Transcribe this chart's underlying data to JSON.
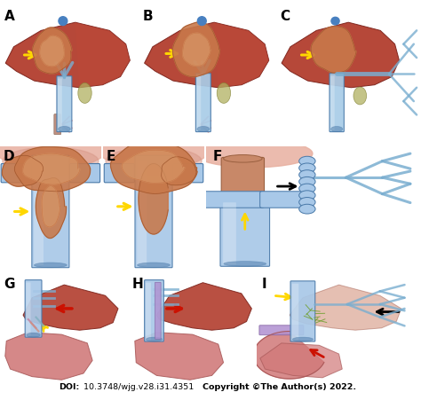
{
  "figsize": [
    4.74,
    4.51
  ],
  "dpi": 100,
  "background_color": "#ffffff",
  "panel_labels": [
    "A",
    "B",
    "C",
    "D",
    "E",
    "F",
    "G",
    "H",
    "I"
  ],
  "doi_bold": "DOI:",
  "doi_rest": " 10.3748/wjg.v28.i31.4351 ",
  "doi_copy": "Copyright ©The Author(s) 2022.",
  "doi_fontsize": 6.8,
  "yellow": "#FFD700",
  "red": "#CC1100",
  "black": "#000000",
  "liver_dark": "#9B3020",
  "liver_mid": "#B84030",
  "liver_light": "#C85040",
  "vein_blue": "#7AAED0",
  "vein_light": "#A8CCE8",
  "vein_dark": "#4878A8",
  "tumor_main": "#C8784A",
  "tumor_light": "#D89868",
  "tumor_dark": "#A05830",
  "stomach_main": "#D07878",
  "stomach_dark": "#A85858",
  "pink_bg": "#E8B0A8",
  "white": "#FFFFFF"
}
